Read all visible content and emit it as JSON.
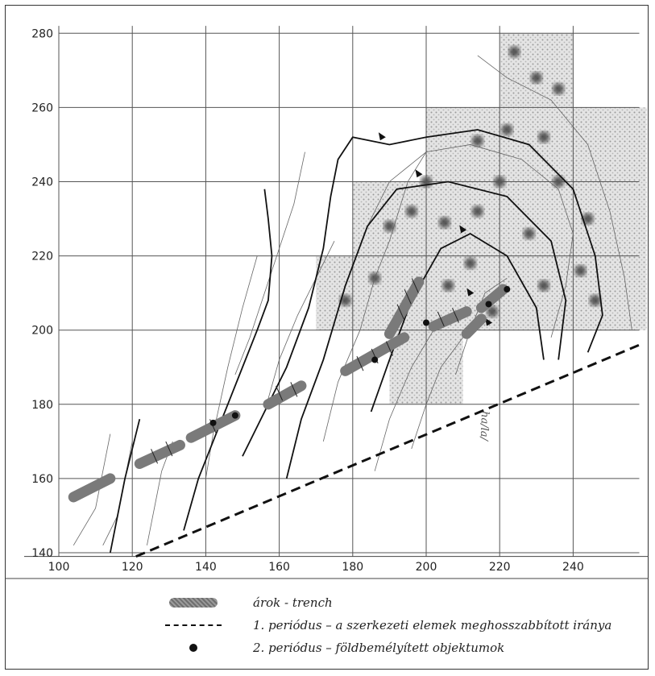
{
  "map": {
    "x_axis": {
      "ticks": [
        100,
        120,
        140,
        160,
        180,
        200,
        220,
        240
      ],
      "range": [
        100,
        258
      ]
    },
    "y_axis": {
      "ticks": [
        140,
        160,
        180,
        200,
        220,
        240,
        260,
        280
      ],
      "range": [
        139,
        282
      ]
    }
  },
  "legend": {
    "trench_label": "árok - trench",
    "period1_label": "1. periódus – a szerkezeti elemek meghosszabbított iránya",
    "period2_label": "2. periódus – földbemélyített objektumok"
  },
  "handwritten_annotation": "ha/la/",
  "colors": {
    "grid": "#555555",
    "trench": "#7a7a7a",
    "ink": "#111111"
  },
  "icons": {
    "trench": "trench-swatch",
    "period1": "dash-line",
    "period2": "black-dot"
  }
}
